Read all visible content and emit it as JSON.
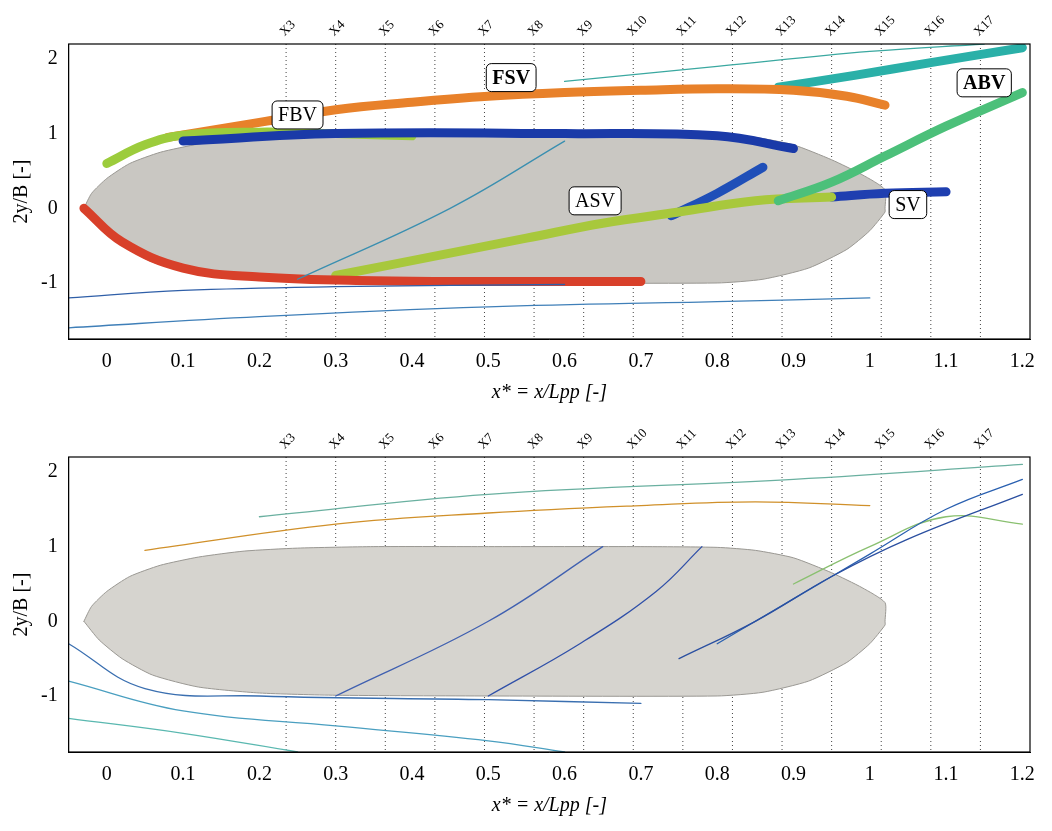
{
  "chart_data": [
    {
      "type": "line",
      "x_label": "x* = x/Lpp [-]",
      "y_label": "2y/B [-]",
      "xlim": [
        -0.05,
        1.21
      ],
      "ylim": [
        -1.75,
        2.2
      ],
      "xticks": [
        0,
        0.1,
        0.2,
        0.3,
        0.4,
        0.5,
        0.6,
        0.7,
        0.8,
        0.9,
        1,
        1.1,
        1.2
      ],
      "yticks": [
        -1,
        0,
        1,
        2
      ],
      "grid": false,
      "stations": {
        "labels": [
          "X3",
          "X4",
          "X5",
          "X6",
          "X7",
          "X8",
          "X9",
          "X10",
          "X11",
          "X12",
          "X13",
          "X14",
          "X15",
          "X16",
          "X17"
        ],
        "x": [
          0.235,
          0.3,
          0.365,
          0.43,
          0.495,
          0.56,
          0.625,
          0.69,
          0.755,
          0.82,
          0.885,
          0.95,
          1.015,
          1.08,
          1.145
        ]
      },
      "annotations": [
        {
          "text": "FBV",
          "x": 0.25,
          "y": 1.25
        },
        {
          "text": "FSV",
          "x": 0.53,
          "y": 1.75
        },
        {
          "text": "ABV",
          "x": 1.15,
          "y": 1.68
        },
        {
          "text": "ASV",
          "x": 0.64,
          "y": 0.1
        },
        {
          "text": "SV",
          "x": 1.05,
          "y": 0.05
        }
      ],
      "series": [
        {
          "type": "area",
          "color": "#c9c7c2",
          "values": [
            [
              -0.03,
              0
            ],
            [
              -0.02,
              0.2
            ],
            [
              0,
              0.4
            ],
            [
              0.03,
              0.6
            ],
            [
              0.07,
              0.75
            ],
            [
              0.12,
              0.86
            ],
            [
              0.18,
              0.94
            ],
            [
              0.25,
              0.98
            ],
            [
              0.35,
              1
            ],
            [
              0.5,
              1
            ],
            [
              0.7,
              1
            ],
            [
              0.8,
              0.99
            ],
            [
              0.85,
              0.95
            ],
            [
              0.9,
              0.85
            ],
            [
              0.95,
              0.65
            ],
            [
              0.99,
              0.45
            ],
            [
              1.02,
              0.25
            ],
            [
              1.02,
              0
            ],
            [
              1.02,
              -0.05
            ],
            [
              1,
              -0.3
            ],
            [
              0.97,
              -0.55
            ],
            [
              0.92,
              -0.8
            ],
            [
              0.86,
              -0.95
            ],
            [
              0.8,
              -1
            ],
            [
              0.5,
              -1
            ],
            [
              0.3,
              -0.99
            ],
            [
              0.2,
              -0.96
            ],
            [
              0.12,
              -0.88
            ],
            [
              0.06,
              -0.72
            ],
            [
              0.02,
              -0.5
            ],
            [
              -0.01,
              -0.25
            ],
            [
              -0.03,
              0
            ]
          ]
        },
        {
          "line_style": "solid",
          "color": "#2f5fa8",
          "values": [
            [
              -0.05,
              -1.2
            ],
            [
              0.1,
              -1.1
            ],
            [
              0.3,
              -1.05
            ],
            [
              0.6,
              -1.02
            ]
          ]
        },
        {
          "line_style": "solid",
          "color": "#3f7fb8",
          "values": [
            [
              -0.05,
              -1.6
            ],
            [
              0.2,
              -1.45
            ],
            [
              0.5,
              -1.32
            ],
            [
              0.8,
              -1.25
            ],
            [
              1,
              -1.2
            ]
          ]
        },
        {
          "line_style": "solid",
          "color": "#3a8fb0",
          "values": [
            [
              0.25,
              -0.95
            ],
            [
              0.45,
              0
            ],
            [
              0.6,
              0.9
            ]
          ]
        },
        {
          "line_style": "solid",
          "color": "#3aa8a0",
          "values": [
            [
              0.6,
              1.7
            ],
            [
              0.8,
              1.9
            ],
            [
              1,
              2.1
            ],
            [
              1.15,
              2.2
            ]
          ]
        },
        {
          "line_style": "tube",
          "color": "#d8402a",
          "values": [
            [
              -0.03,
              0
            ],
            [
              0.02,
              -0.45
            ],
            [
              0.1,
              -0.8
            ],
            [
              0.2,
              -0.92
            ],
            [
              0.35,
              -0.97
            ],
            [
              0.5,
              -0.98
            ],
            [
              0.7,
              -0.98
            ]
          ]
        },
        {
          "line_style": "tube",
          "color": "#1a3aa8",
          "values": [
            [
              0.1,
              0.9
            ],
            [
              0.3,
              1
            ],
            [
              0.6,
              1
            ],
            [
              0.8,
              0.97
            ],
            [
              0.9,
              0.8
            ]
          ]
        },
        {
          "line_style": "tube",
          "color": "#9ccc3c",
          "values": [
            [
              0,
              0.6
            ],
            [
              0.05,
              0.85
            ],
            [
              0.1,
              0.98
            ],
            [
              0.2,
              1.02
            ],
            [
              0.3,
              1
            ],
            [
              0.4,
              0.97
            ]
          ]
        },
        {
          "line_style": "tube",
          "color": "#e8812a",
          "values": [
            [
              0.08,
              0.95
            ],
            [
              0.2,
              1.15
            ],
            [
              0.3,
              1.32
            ],
            [
              0.4,
              1.42
            ],
            [
              0.5,
              1.5
            ],
            [
              0.6,
              1.55
            ],
            [
              0.7,
              1.58
            ],
            [
              0.8,
              1.6
            ],
            [
              0.9,
              1.58
            ],
            [
              0.97,
              1.5
            ],
            [
              1.02,
              1.38
            ]
          ]
        },
        {
          "line_style": "tube",
          "color": "#2ab0a8",
          "values": [
            [
              0.88,
              1.62
            ],
            [
              0.98,
              1.78
            ],
            [
              1.08,
              1.95
            ],
            [
              1.2,
              2.15
            ]
          ]
        },
        {
          "line_style": "tube",
          "color": "#4cc07a",
          "values": [
            [
              0.88,
              0.1
            ],
            [
              0.95,
              0.35
            ],
            [
              1.02,
              0.7
            ],
            [
              1.1,
              1.1
            ],
            [
              1.2,
              1.55
            ]
          ]
        },
        {
          "line_style": "tube",
          "color": "#a8c83c",
          "values": [
            [
              0.3,
              -0.9
            ],
            [
              0.45,
              -0.6
            ],
            [
              0.55,
              -0.4
            ],
            [
              0.65,
              -0.2
            ],
            [
              0.75,
              -0.05
            ],
            [
              0.85,
              0.1
            ],
            [
              0.95,
              0.15
            ]
          ]
        },
        {
          "line_style": "tube",
          "color": "#1f4fb8",
          "values": [
            [
              0.74,
              -0.1
            ],
            [
              0.8,
              0.2
            ],
            [
              0.86,
              0.55
            ]
          ]
        },
        {
          "line_style": "tube",
          "color": "#1f3fb0",
          "values": [
            [
              0.95,
              0.15
            ],
            [
              1.02,
              0.2
            ],
            [
              1.1,
              0.22
            ]
          ]
        }
      ]
    },
    {
      "type": "line",
      "x_label": "x* = x/Lpp [-]",
      "y_label": "2y/B [-]",
      "xlim": [
        -0.05,
        1.21
      ],
      "ylim": [
        -1.75,
        2.2
      ],
      "xticks": [
        0,
        0.1,
        0.2,
        0.3,
        0.4,
        0.5,
        0.6,
        0.7,
        0.8,
        0.9,
        1,
        1.1,
        1.2
      ],
      "yticks": [
        -1,
        0,
        1,
        2
      ],
      "grid": false,
      "stations": {
        "labels": [
          "X3",
          "X4",
          "X5",
          "X6",
          "X7",
          "X8",
          "X9",
          "X10",
          "X11",
          "X12",
          "X13",
          "X14",
          "X15",
          "X16",
          "X17"
        ],
        "x": [
          0.235,
          0.3,
          0.365,
          0.43,
          0.495,
          0.56,
          0.625,
          0.69,
          0.755,
          0.82,
          0.885,
          0.95,
          1.015,
          1.08,
          1.145
        ]
      },
      "series": [
        {
          "type": "area",
          "color": "#d6d4cf",
          "values": [
            [
              -0.03,
              0
            ],
            [
              -0.02,
              0.2
            ],
            [
              0,
              0.4
            ],
            [
              0.03,
              0.6
            ],
            [
              0.07,
              0.75
            ],
            [
              0.12,
              0.86
            ],
            [
              0.18,
              0.94
            ],
            [
              0.25,
              0.98
            ],
            [
              0.35,
              1
            ],
            [
              0.5,
              1
            ],
            [
              0.7,
              1
            ],
            [
              0.8,
              0.99
            ],
            [
              0.85,
              0.95
            ],
            [
              0.9,
              0.85
            ],
            [
              0.95,
              0.65
            ],
            [
              0.99,
              0.45
            ],
            [
              1.02,
              0.25
            ],
            [
              1.02,
              0
            ],
            [
              1.02,
              -0.05
            ],
            [
              1,
              -0.3
            ],
            [
              0.97,
              -0.55
            ],
            [
              0.92,
              -0.8
            ],
            [
              0.86,
              -0.95
            ],
            [
              0.8,
              -1
            ],
            [
              0.5,
              -1
            ],
            [
              0.3,
              -0.99
            ],
            [
              0.2,
              -0.96
            ],
            [
              0.12,
              -0.88
            ],
            [
              0.06,
              -0.72
            ],
            [
              0.02,
              -0.5
            ],
            [
              -0.01,
              -0.25
            ],
            [
              -0.03,
              0
            ]
          ]
        },
        {
          "line_style": "solid",
          "color": "#3a6fb0",
          "values": [
            [
              -0.05,
              -0.3
            ],
            [
              0.05,
              -0.9
            ],
            [
              0.2,
              -1
            ],
            [
              0.5,
              -1.05
            ],
            [
              0.7,
              -1.1
            ]
          ]
        },
        {
          "line_style": "solid",
          "color": "#4a9fc0",
          "values": [
            [
              -0.05,
              -0.8
            ],
            [
              0.1,
              -1.2
            ],
            [
              0.3,
              -1.4
            ],
            [
              0.5,
              -1.6
            ],
            [
              0.6,
              -1.75
            ]
          ]
        },
        {
          "line_style": "solid",
          "color": "#5ab8b0",
          "values": [
            [
              -0.05,
              -1.3
            ],
            [
              0.1,
              -1.5
            ],
            [
              0.25,
              -1.75
            ]
          ]
        },
        {
          "line_style": "solid",
          "color": "#4060b0",
          "values": [
            [
              0.3,
              -1
            ],
            [
              0.5,
              0
            ],
            [
              0.65,
              1
            ]
          ]
        },
        {
          "line_style": "solid",
          "color": "#3050a8",
          "values": [
            [
              0.5,
              -1
            ],
            [
              0.62,
              -0.3
            ],
            [
              0.72,
              0.4
            ],
            [
              0.78,
              1
            ]
          ]
        },
        {
          "line_style": "solid",
          "color": "#d0902a",
          "values": [
            [
              0.05,
              0.95
            ],
            [
              0.3,
              1.3
            ],
            [
              0.5,
              1.45
            ],
            [
              0.7,
              1.55
            ],
            [
              0.85,
              1.6
            ],
            [
              1,
              1.55
            ]
          ]
        },
        {
          "line_style": "solid",
          "color": "#6ab0a0",
          "values": [
            [
              0.2,
              1.4
            ],
            [
              0.5,
              1.7
            ],
            [
              0.9,
              1.9
            ],
            [
              1.2,
              2.1
            ]
          ]
        },
        {
          "line_style": "solid",
          "color": "#2a4fa0",
          "values": [
            [
              0.75,
              -0.5
            ],
            [
              0.85,
              0
            ],
            [
              0.95,
              0.6
            ],
            [
              1.05,
              1.1
            ],
            [
              1.2,
              1.7
            ]
          ]
        },
        {
          "line_style": "solid",
          "color": "#2a60b0",
          "values": [
            [
              0.8,
              -0.3
            ],
            [
              0.9,
              0.3
            ],
            [
              1,
              0.9
            ],
            [
              1.1,
              1.5
            ],
            [
              1.2,
              1.9
            ]
          ]
        },
        {
          "line_style": "solid",
          "color": "#8ac070",
          "values": [
            [
              0.9,
              0.5
            ],
            [
              1,
              1
            ],
            [
              1.1,
              1.4
            ],
            [
              1.2,
              1.3
            ]
          ]
        }
      ]
    }
  ]
}
